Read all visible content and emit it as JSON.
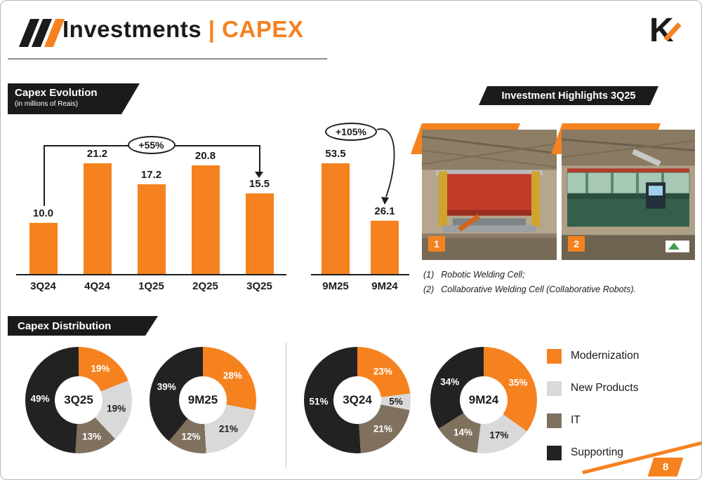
{
  "colors": {
    "accent": "#F5821F",
    "dark": "#1B1B1B",
    "light_gray": "#D9D9D9",
    "taupe": "#80715F",
    "segment_dark": "#222222"
  },
  "header": {
    "title": "Investments",
    "separator": "|",
    "title_accent": "CAPEX",
    "logo_letter": "K"
  },
  "sections": {
    "evolution": {
      "banner": "Capex Evolution",
      "subtitle": "(in millions of Reais)"
    },
    "highlights": {
      "banner": "Investment Highlights 3Q25"
    },
    "distribution": {
      "banner": "Capex Distribution"
    }
  },
  "highlights": {
    "items": [
      {
        "number": "1",
        "caption_prefix": "(1)",
        "caption": "Robotic Welding Cell;"
      },
      {
        "number": "2",
        "caption_prefix": "(2)",
        "caption": "Collaborative Welding Cell (Collaborative Robots)."
      }
    ]
  },
  "legend": {
    "items": [
      {
        "label": "Modernization",
        "color": "#F5821F"
      },
      {
        "label": "New Products",
        "color": "#D9D9D9"
      },
      {
        "label": "IT",
        "color": "#80715F"
      },
      {
        "label": "Supporting",
        "color": "#222222"
      }
    ]
  },
  "page_number": "8",
  "chart_data": [
    {
      "id": "capex-evolution-quarterly",
      "type": "bar",
      "title": "Capex Evolution (in millions of Reais)",
      "categories": [
        "3Q24",
        "4Q24",
        "1Q25",
        "2Q25",
        "3Q25"
      ],
      "values": [
        10.0,
        21.2,
        17.2,
        20.8,
        15.5
      ],
      "ylim": [
        0,
        22
      ],
      "annotation": {
        "label": "+55%",
        "from": "3Q24",
        "to": "3Q25"
      }
    },
    {
      "id": "capex-evolution-nine-months",
      "type": "bar",
      "title": "Capex nine-month comparison (in millions of Reais)",
      "categories": [
        "9M25",
        "9M24"
      ],
      "values": [
        53.5,
        26.1
      ],
      "ylim": [
        0,
        55
      ],
      "annotation": {
        "label": "+105%",
        "from": "9M25",
        "to": "9M24"
      }
    },
    {
      "id": "capex-distribution",
      "type": "pie",
      "title": "Capex Distribution",
      "legend": [
        "Modernization",
        "New Products",
        "IT",
        "Supporting"
      ],
      "legend_position": "right",
      "donuts": [
        {
          "title": "3Q25",
          "values": [
            19,
            19,
            13,
            49
          ]
        },
        {
          "title": "9M25",
          "values": [
            28,
            21,
            12,
            39
          ]
        },
        {
          "title": "3Q24",
          "values": [
            23,
            5,
            21,
            51
          ]
        },
        {
          "title": "9M24",
          "values": [
            35,
            17,
            14,
            34
          ]
        }
      ]
    }
  ]
}
